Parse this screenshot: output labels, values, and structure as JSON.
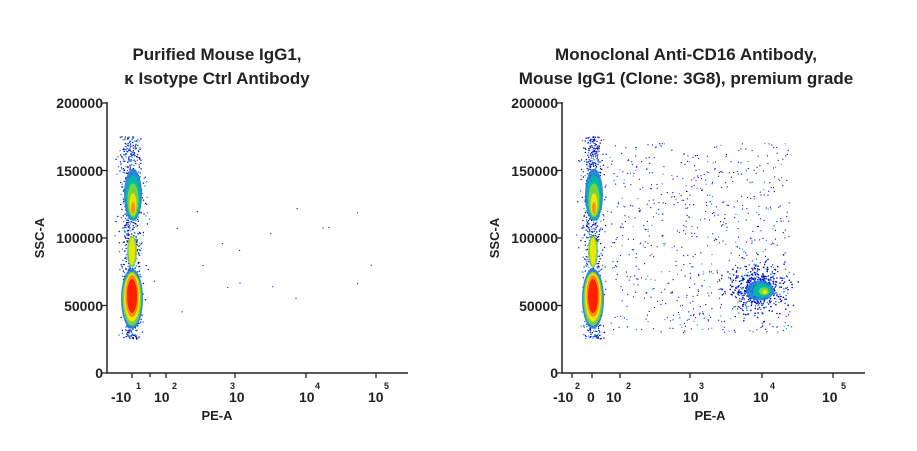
{
  "chart_data": [
    {
      "type": "scatter",
      "title_lines": [
        "Purified Mouse IgG1,",
        "κ Isotype Ctrl Antibody"
      ],
      "xlabel": "PE-A",
      "ylabel": "SSC-A",
      "x_scale": "biexponential",
      "y_ticks": [
        "200000",
        "150000",
        "100000",
        "50000",
        "0"
      ],
      "x_tick_labels": [
        {
          "base": "-10",
          "exp": "1"
        },
        {
          "base": "10",
          "exp": "2"
        },
        {
          "base": "10",
          "exp": "3"
        },
        {
          "base": "10",
          "exp": "4"
        },
        {
          "base": "10",
          "exp": "5"
        }
      ],
      "ylim": [
        0,
        200000
      ],
      "populations": [
        {
          "name": "PE-negative",
          "x_center": 0,
          "y_range": [
            25000,
            175000
          ],
          "density_peaks_y": [
            55000,
            130000
          ]
        }
      ]
    },
    {
      "type": "scatter",
      "title_lines": [
        "Monoclonal Anti-CD16 Antibody,",
        "Mouse IgG1 (Clone: 3G8), premium grade"
      ],
      "xlabel": "PE-A",
      "ylabel": "SSC-A",
      "x_scale": "biexponential",
      "y_ticks": [
        "200000",
        "150000",
        "100000",
        "50000",
        "0"
      ],
      "x_tick_labels": [
        {
          "base": "-10",
          "exp": "2"
        },
        {
          "base": "0",
          "exp": ""
        },
        {
          "base": "10",
          "exp": "2"
        },
        {
          "base": "10",
          "exp": "3"
        },
        {
          "base": "10",
          "exp": "4"
        },
        {
          "base": "10",
          "exp": "5"
        }
      ],
      "ylim": [
        0,
        200000
      ],
      "populations": [
        {
          "name": "PE-negative",
          "x_center": 0,
          "y_range": [
            25000,
            175000
          ],
          "density_peaks_y": [
            55000,
            130000
          ]
        },
        {
          "name": "PE-positive",
          "x_center": 10000,
          "y_range": [
            45000,
            75000
          ],
          "density_peaks_y": [
            60000
          ]
        }
      ]
    }
  ],
  "colors": {
    "density_scale": [
      "#0000cc",
      "#1a7fd6",
      "#00c0a0",
      "#7ad63a",
      "#f2e600",
      "#ff8c00",
      "#ff2000"
    ],
    "axis": "#222222"
  }
}
